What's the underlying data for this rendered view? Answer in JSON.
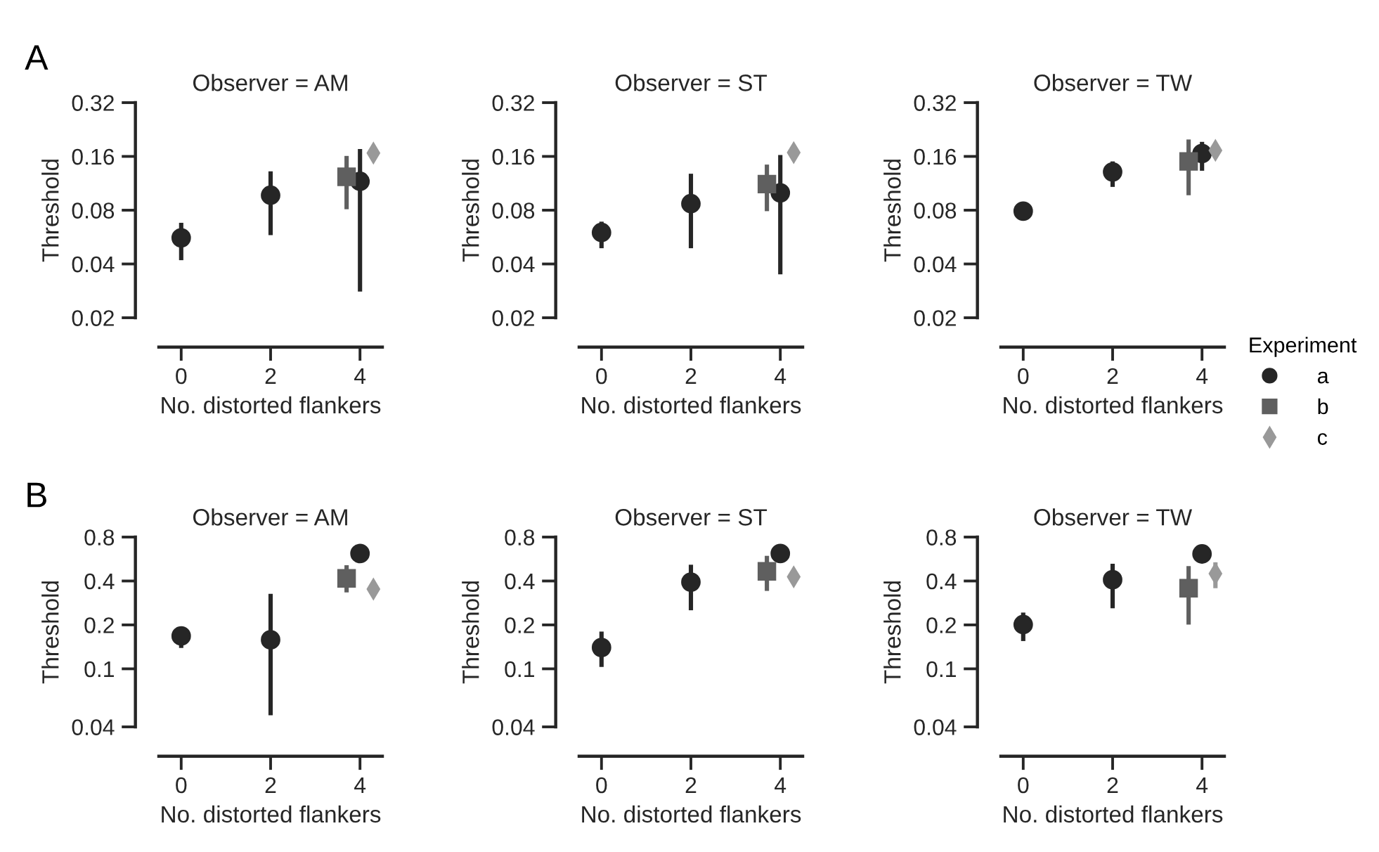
{
  "chart_data": [
    {
      "type": "scatter",
      "title": "Observer = AM",
      "xlabel": "No. distorted flankers",
      "ylabel": "Threshold",
      "annotations": [
        "A"
      ],
      "log": "y",
      "xlim": [
        -0.5,
        4.5
      ],
      "xticks": [
        0,
        2,
        4
      ],
      "ylim": [
        0.02,
        0.32
      ],
      "yticks": [
        0.02,
        0.04,
        0.08,
        0.16,
        0.32
      ],
      "grid": false,
      "legend": false,
      "series": [
        {
          "color": "#262626",
          "marker": "circle",
          "x": [
            0,
            2,
            4
          ],
          "values": [
            0.056,
            0.097,
            0.116
          ],
          "errors": [
            [
              0.042,
              0.068
            ],
            [
              0.058,
              0.132
            ],
            [
              0.028,
              0.176
            ]
          ]
        },
        {
          "color": "#5f5f5f",
          "marker": "square",
          "x": [
            3.7
          ],
          "values": [
            0.123
          ],
          "errors": [
            [
              0.081,
              0.161
            ]
          ]
        },
        {
          "color": "#999999",
          "marker": "diamond",
          "x": [
            4.3
          ],
          "values": [
            0.167
          ],
          "errors": [
            null
          ]
        }
      ]
    },
    {
      "type": "scatter",
      "title": "Observer = ST",
      "xlabel": "No. distorted flankers",
      "ylabel": "Threshold",
      "log": "y",
      "xlim": [
        -0.5,
        4.5
      ],
      "xticks": [
        0,
        2,
        4
      ],
      "ylim": [
        0.02,
        0.32
      ],
      "yticks": [
        0.02,
        0.04,
        0.08,
        0.16,
        0.32
      ],
      "grid": false,
      "legend": false,
      "series": [
        {
          "color": "#262626",
          "marker": "circle",
          "x": [
            0,
            2,
            4
          ],
          "values": [
            0.06,
            0.087,
            0.1
          ],
          "errors": [
            [
              0.049,
              0.069
            ],
            [
              0.049,
              0.128
            ],
            [
              0.035,
              0.163
            ]
          ]
        },
        {
          "color": "#5f5f5f",
          "marker": "square",
          "x": [
            3.7
          ],
          "values": [
            0.112
          ],
          "errors": [
            [
              0.079,
              0.144
            ]
          ]
        },
        {
          "color": "#999999",
          "marker": "diamond",
          "x": [
            4.3
          ],
          "values": [
            0.168
          ],
          "errors": [
            null
          ]
        }
      ]
    },
    {
      "type": "scatter",
      "title": "Observer = TW",
      "xlabel": "No. distorted flankers",
      "ylabel": "Threshold",
      "log": "y",
      "xlim": [
        -0.5,
        4.5
      ],
      "xticks": [
        0,
        2,
        4
      ],
      "ylim": [
        0.02,
        0.32
      ],
      "yticks": [
        0.02,
        0.04,
        0.08,
        0.16,
        0.32
      ],
      "grid": false,
      "legend": "right",
      "legend_title": "Experiment",
      "series": [
        {
          "name": "a",
          "color": "#262626",
          "marker": "circle",
          "x": [
            0,
            2,
            4
          ],
          "values": [
            0.079,
            0.131,
            0.166
          ],
          "errors": [
            null,
            [
              0.108,
              0.15
            ],
            [
              0.133,
              0.193
            ]
          ]
        },
        {
          "name": "b",
          "color": "#5f5f5f",
          "marker": "square",
          "x": [
            3.7
          ],
          "values": [
            0.15
          ],
          "errors": [
            [
              0.097,
              0.199
            ]
          ]
        },
        {
          "name": "c",
          "color": "#999999",
          "marker": "diamond",
          "x": [
            4.3
          ],
          "values": [
            0.173
          ],
          "errors": [
            null
          ]
        }
      ]
    },
    {
      "type": "scatter",
      "title": "Observer = AM",
      "xlabel": "No. distorted flankers",
      "ylabel": "Threshold",
      "annotations": [
        "B"
      ],
      "log": "y",
      "xlim": [
        -0.5,
        4.5
      ],
      "xticks": [
        0,
        2,
        4
      ],
      "ylim": [
        0.04,
        0.8
      ],
      "yticks": [
        0.04,
        0.1,
        0.2,
        0.4,
        0.8
      ],
      "grid": false,
      "legend": false,
      "series": [
        {
          "color": "#262626",
          "marker": "circle",
          "x": [
            0,
            2,
            4
          ],
          "values": [
            0.168,
            0.158,
            0.617
          ],
          "errors": [
            [
              0.139,
              0.192
            ],
            [
              0.048,
              0.327
            ],
            null
          ]
        },
        {
          "color": "#5f5f5f",
          "marker": "square",
          "x": [
            3.7
          ],
          "values": [
            0.417
          ],
          "errors": [
            [
              0.334,
              0.513
            ]
          ]
        },
        {
          "color": "#999999",
          "marker": "diamond",
          "x": [
            4.3
          ],
          "values": [
            0.352
          ],
          "errors": [
            null
          ]
        }
      ]
    },
    {
      "type": "scatter",
      "title": "Observer = ST",
      "xlabel": "No. distorted flankers",
      "ylabel": "Threshold",
      "log": "y",
      "xlim": [
        -0.5,
        4.5
      ],
      "xticks": [
        0,
        2,
        4
      ],
      "ylim": [
        0.04,
        0.8
      ],
      "yticks": [
        0.04,
        0.1,
        0.2,
        0.4,
        0.8
      ],
      "grid": false,
      "legend": false,
      "series": [
        {
          "color": "#262626",
          "marker": "circle",
          "x": [
            0,
            2,
            4
          ],
          "values": [
            0.14,
            0.393,
            0.617
          ],
          "errors": [
            [
              0.103,
              0.18
            ],
            [
              0.252,
              0.517
            ],
            null
          ]
        },
        {
          "color": "#5f5f5f",
          "marker": "square",
          "x": [
            3.7
          ],
          "values": [
            0.466
          ],
          "errors": [
            [
              0.342,
              0.595
            ]
          ]
        },
        {
          "color": "#999999",
          "marker": "diamond",
          "x": [
            4.3
          ],
          "values": [
            0.427
          ],
          "errors": [
            null
          ]
        }
      ]
    },
    {
      "type": "scatter",
      "title": "Observer = TW",
      "xlabel": "No. distorted flankers",
      "ylabel": "Threshold",
      "log": "y",
      "xlim": [
        -0.5,
        4.5
      ],
      "xticks": [
        0,
        2,
        4
      ],
      "ylim": [
        0.04,
        0.8
      ],
      "yticks": [
        0.04,
        0.1,
        0.2,
        0.4,
        0.8
      ],
      "grid": false,
      "legend": false,
      "series": [
        {
          "color": "#262626",
          "marker": "circle",
          "x": [
            0,
            2,
            4
          ],
          "values": [
            0.201,
            0.408,
            0.613
          ],
          "errors": [
            [
              0.155,
              0.243
            ],
            [
              0.26,
              0.525
            ],
            null
          ]
        },
        {
          "color": "#5f5f5f",
          "marker": "square",
          "x": [
            3.7
          ],
          "values": [
            0.357
          ],
          "errors": [
            [
              0.201,
              0.506
            ]
          ]
        },
        {
          "color": "#999999",
          "marker": "diamond",
          "x": [
            4.3
          ],
          "values": [
            0.449
          ],
          "errors": [
            [
              0.357,
              0.537
            ]
          ]
        }
      ]
    }
  ]
}
